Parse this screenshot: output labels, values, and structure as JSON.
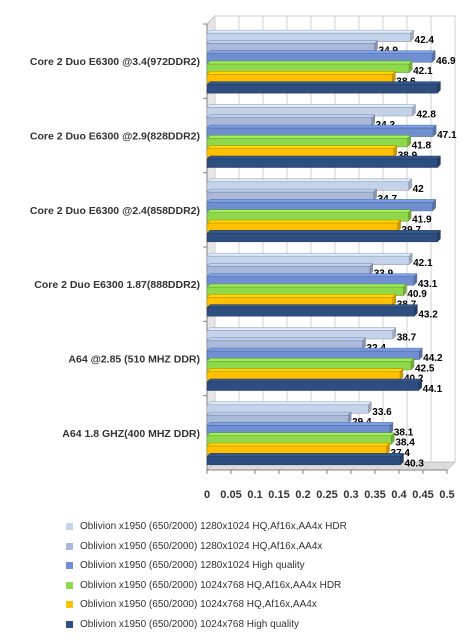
{
  "chart_data": {
    "type": "bar",
    "orientation": "horizontal",
    "categories": [
      "Core 2 Duo E6300 @3.4(972DDR2)",
      "Core 2 Duo E6300 @2.9(828DDR2)",
      "Core 2 Duo E6300 @2.4(858DDR2)",
      "Core 2 Duo E6300 1.87(888DDR2)",
      "A64 @2.85 (510 MHZ DDR)",
      "A64 1.8 GHZ(400 MHZ DDR)"
    ],
    "series": [
      {
        "name": "Oblivion x1950 (650/2000) 1280x1024  HQ,Af16x,AA4x HDR",
        "color": "#c5d3ea",
        "values": [
          0.424,
          0.428,
          0.42,
          0.421,
          0.387,
          0.336
        ],
        "labels": [
          "42.4",
          "42.8",
          "42",
          "42.1",
          "38.7",
          "33.6"
        ]
      },
      {
        "name": "Oblivion x1950 (650/2000) 1280x1024  HQ,Af16x,AA4x",
        "color": "#aab9da",
        "values": [
          0.349,
          0.343,
          0.347,
          0.339,
          0.324,
          0.294
        ],
        "labels": [
          "34.9",
          "34.3",
          "34.7",
          "33.9",
          "32.4",
          "29.4"
        ]
      },
      {
        "name": "Oblivion x1950 (650/2000) 1280x1024 High quality",
        "color": "#6f8fd0",
        "values": [
          0.469,
          0.471,
          0.47,
          0.431,
          0.442,
          0.381
        ],
        "labels": [
          "46.9",
          "47.1",
          "",
          "43.1",
          "44.2",
          "38.1"
        ]
      },
      {
        "name": "Oblivion x1950 (650/2000) 1024x768 HQ,Af16x,AA4x HDR",
        "color": "#8ed84b",
        "values": [
          0.421,
          0.418,
          0.419,
          0.409,
          0.425,
          0.384
        ],
        "labels": [
          "42.1",
          "41.8",
          "41.9",
          "40.9",
          "42.5",
          "38.4"
        ]
      },
      {
        "name": "Oblivion x1950 (650/2000) 1024x768 HQ,Af16x,AA4x",
        "color": "#ffc000",
        "values": [
          0.386,
          0.389,
          0.397,
          0.387,
          0.402,
          0.374
        ],
        "labels": [
          "38.6",
          "38.9",
          "39.7",
          "38.7",
          "40.2",
          "37.4"
        ]
      },
      {
        "name": "Oblivion x1950 (650/2000) 1024x768 High quality",
        "color": "#2e4e80",
        "values": [
          0.48,
          0.48,
          0.48,
          0.432,
          0.441,
          0.403
        ],
        "labels": [
          "",
          "",
          "",
          "43.2",
          "44.1",
          "40.3"
        ]
      }
    ],
    "xlim": [
      0,
      0.5
    ],
    "xticks": [
      "0",
      "0.05",
      "0.1",
      "0.15",
      "0.2",
      "0.25",
      "0.3",
      "0.35",
      "0.4",
      "0.45",
      "0.5"
    ],
    "grid": true,
    "legend_position": "bottom"
  }
}
